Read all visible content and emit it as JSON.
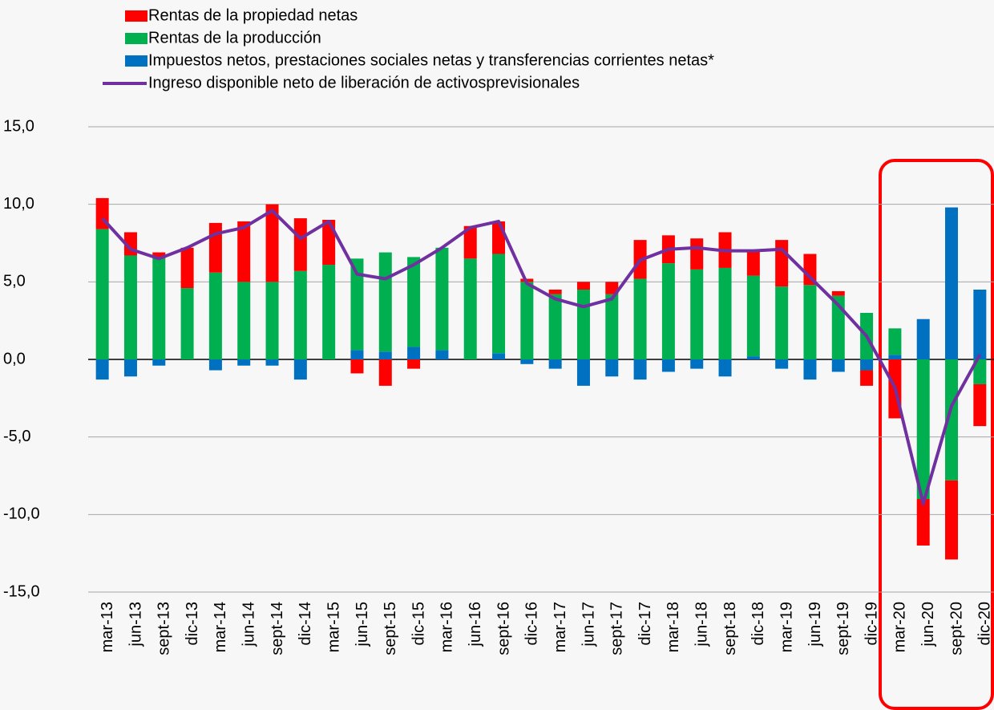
{
  "chart_data": {
    "type": "bar",
    "stacked": true,
    "categories": [
      "mar-13",
      "jun-13",
      "sept-13",
      "dic-13",
      "mar-14",
      "jun-14",
      "sept-14",
      "dic-14",
      "mar-15",
      "jun-15",
      "sept-15",
      "dic-15",
      "mar-16",
      "jun-16",
      "sept-16",
      "dic-16",
      "mar-17",
      "jun-17",
      "sept-17",
      "dic-17",
      "mar-18",
      "jun-18",
      "sept-18",
      "dic-18",
      "mar-19",
      "jun-19",
      "sept-19",
      "dic-19",
      "mar-20",
      "jun-20",
      "sept-20",
      "dic-20"
    ],
    "series": [
      {
        "name": "Rentas de la propiedad netas",
        "color": "#ff0000",
        "values": [
          2.0,
          1.5,
          0.4,
          2.6,
          3.2,
          3.9,
          5.0,
          3.4,
          2.9,
          -0.9,
          -1.7,
          -0.6,
          0,
          2.1,
          2.1,
          0.2,
          0.3,
          0.5,
          0.8,
          2.5,
          1.8,
          2.0,
          2.3,
          1.6,
          3.0,
          2.0,
          0.3,
          -1.0,
          -3.8,
          -3.0,
          -5.1,
          -2.7
        ]
      },
      {
        "name": "Rentas de la producción",
        "color": "#00b050",
        "values": [
          8.4,
          6.7,
          6.5,
          4.6,
          5.6,
          5.0,
          5.0,
          5.7,
          6.1,
          5.9,
          6.4,
          5.8,
          6.6,
          6.5,
          6.4,
          5.0,
          4.2,
          4.5,
          4.2,
          5.2,
          6.2,
          5.8,
          5.9,
          5.2,
          4.7,
          4.8,
          4.1,
          3.0,
          1.7,
          -9.0,
          -7.8,
          -1.6
        ]
      },
      {
        "name": "Impuestos netos, prestaciones sociales netas y transferencias corrientes netas*",
        "color": "#0070c0",
        "values": [
          -1.3,
          -1.1,
          -0.4,
          0,
          -0.7,
          -0.4,
          -0.4,
          -1.3,
          0,
          0.6,
          0.5,
          0.8,
          0.6,
          0,
          0.4,
          -0.3,
          -0.6,
          -1.7,
          -1.1,
          -1.3,
          -0.8,
          -0.6,
          -1.1,
          0.2,
          -0.6,
          -1.3,
          -0.8,
          -0.7,
          0.3,
          2.6,
          9.8,
          4.5
        ]
      },
      {
        "name": "Ingreso disponible neto de liberación de activosprevisionales",
        "color": "#7030a0",
        "type": "line",
        "values": [
          9.1,
          7.1,
          6.5,
          7.2,
          8.1,
          8.5,
          9.6,
          7.8,
          8.9,
          5.5,
          5.2,
          6.1,
          7.2,
          8.5,
          8.9,
          4.9,
          3.9,
          3.4,
          3.9,
          6.4,
          7.1,
          7.2,
          7.0,
          7.0,
          7.1,
          5.3,
          3.5,
          1.5,
          -1.8,
          -9.3,
          -3.0,
          0.3
        ]
      }
    ],
    "ylim": [
      -15,
      15
    ],
    "yticks": [
      {
        "value": -15,
        "label": "-15,0"
      },
      {
        "value": -10,
        "label": "-10,0"
      },
      {
        "value": -5,
        "label": "-5,0"
      },
      {
        "value": 0,
        "label": "0,0"
      },
      {
        "value": 5,
        "label": "5,0"
      },
      {
        "value": 10,
        "label": "10,0"
      },
      {
        "value": 15,
        "label": "15,0"
      }
    ],
    "grid": true
  }
}
